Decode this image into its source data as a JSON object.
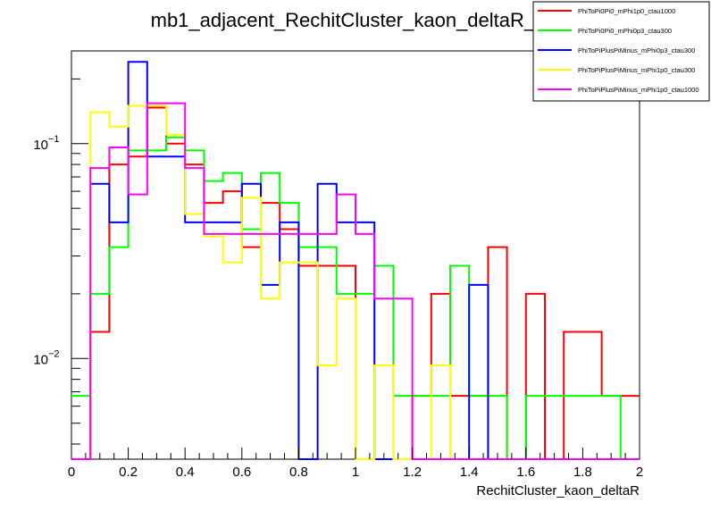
{
  "chart_data": {
    "type": "histogram-step",
    "title": "mb1_adjacent_RechitCluster_kaon_deltaR_0",
    "xlabel": "RechitCluster_kaon_deltaR",
    "ylabel": "",
    "xlim": [
      0,
      2
    ],
    "ylim": [
      0.0034,
      0.27
    ],
    "ylog": true,
    "grid": false,
    "legend_position": "top-right",
    "x_ticks": [
      {
        "v": 0,
        "label": "0"
      },
      {
        "v": 0.2,
        "label": "0.2"
      },
      {
        "v": 0.4,
        "label": "0.4"
      },
      {
        "v": 0.6,
        "label": "0.6"
      },
      {
        "v": 0.8,
        "label": "0.8"
      },
      {
        "v": 1.0,
        "label": "1"
      },
      {
        "v": 1.2,
        "label": "1.2"
      },
      {
        "v": 1.4,
        "label": "1.4"
      },
      {
        "v": 1.6,
        "label": "1.6"
      },
      {
        "v": 1.8,
        "label": "1.8"
      },
      {
        "v": 2.0,
        "label": "2"
      }
    ],
    "y_ticks": [
      {
        "v": 0.1,
        "label": "10",
        "exp": "−1"
      },
      {
        "v": 0.01,
        "label": "10",
        "exp": "−2"
      }
    ],
    "bin_edges": [
      0,
      0.0667,
      0.1333,
      0.2,
      0.2667,
      0.3333,
      0.4,
      0.4667,
      0.5333,
      0.6,
      0.6667,
      0.7333,
      0.8,
      0.8667,
      0.9333,
      1.0,
      1.0667,
      1.1333,
      1.2,
      1.2667,
      1.3333,
      1.4,
      1.4667,
      1.5333,
      1.6,
      1.6667,
      1.7333,
      1.8,
      1.8667,
      1.9333,
      2.0
    ],
    "series": [
      {
        "name": "PhiToPi0Pi0_mPhi1p0_ctau1000",
        "color": "#ff0000",
        "values": [
          0,
          0.0133,
          0.08,
          0.087,
          0.147,
          0.1,
          0.08,
          0.053,
          0.06,
          0.033,
          0.053,
          0.04,
          0.027,
          0.027,
          0.027,
          0,
          0,
          0,
          0.0067,
          0.02,
          0.0067,
          0.0067,
          0.033,
          0,
          0.02,
          0,
          0.0133,
          0.0133,
          0.0067,
          0.0067
        ]
      },
      {
        "name": "PhiToPi0Pi0_mPhi0p3_ctau300",
        "color": "#00ff00",
        "values": [
          0.0067,
          0.02,
          0.033,
          0.093,
          0.093,
          0.107,
          0.093,
          0.067,
          0.073,
          0.04,
          0.073,
          0.053,
          0.033,
          0.033,
          0.02,
          0.02,
          0.027,
          0.0067,
          0.0067,
          0.0067,
          0.027,
          0.0067,
          0.0067,
          0,
          0.0067,
          0.0067,
          0.0067,
          0.0067,
          0.0067,
          0
        ]
      },
      {
        "name": "PhiToPiPlusPiMinus_mPhi0p3_ctau300",
        "color": "#0000ff",
        "values": [
          0,
          0.065,
          0.043,
          0.24,
          0.087,
          0.087,
          0.043,
          0.043,
          0.043,
          0.065,
          0.022,
          0.043,
          0,
          0.065,
          0.043,
          0.043,
          0,
          0,
          0,
          0,
          0,
          0.022,
          0,
          0,
          0,
          0,
          0,
          0,
          0,
          0
        ]
      },
      {
        "name": "PhiToPiPlusPiMinus_mPhi1p0_ctau300",
        "color": "#ffff00",
        "values": [
          0,
          0.14,
          0.12,
          0.15,
          0.15,
          0.11,
          0.047,
          0.037,
          0.028,
          0.056,
          0.019,
          0.028,
          0.028,
          0.0093,
          0.019,
          0,
          0.0093,
          0,
          0,
          0.0093,
          0,
          0,
          0,
          0,
          0,
          0,
          0,
          0,
          0,
          0
        ]
      },
      {
        "name": "PhiToPiPlusPiMinus_mPhi1p0_ctau1000",
        "color": "#ff00ff",
        "values": [
          0,
          0.077,
          0.096,
          0.058,
          0.154,
          0.154,
          0.077,
          0.038,
          0.038,
          0.038,
          0.038,
          0.038,
          0.038,
          0.038,
          0.058,
          0.038,
          0.019,
          0.019,
          0,
          0,
          0,
          0,
          0,
          0,
          0,
          0,
          0,
          0,
          0,
          0
        ]
      }
    ]
  }
}
